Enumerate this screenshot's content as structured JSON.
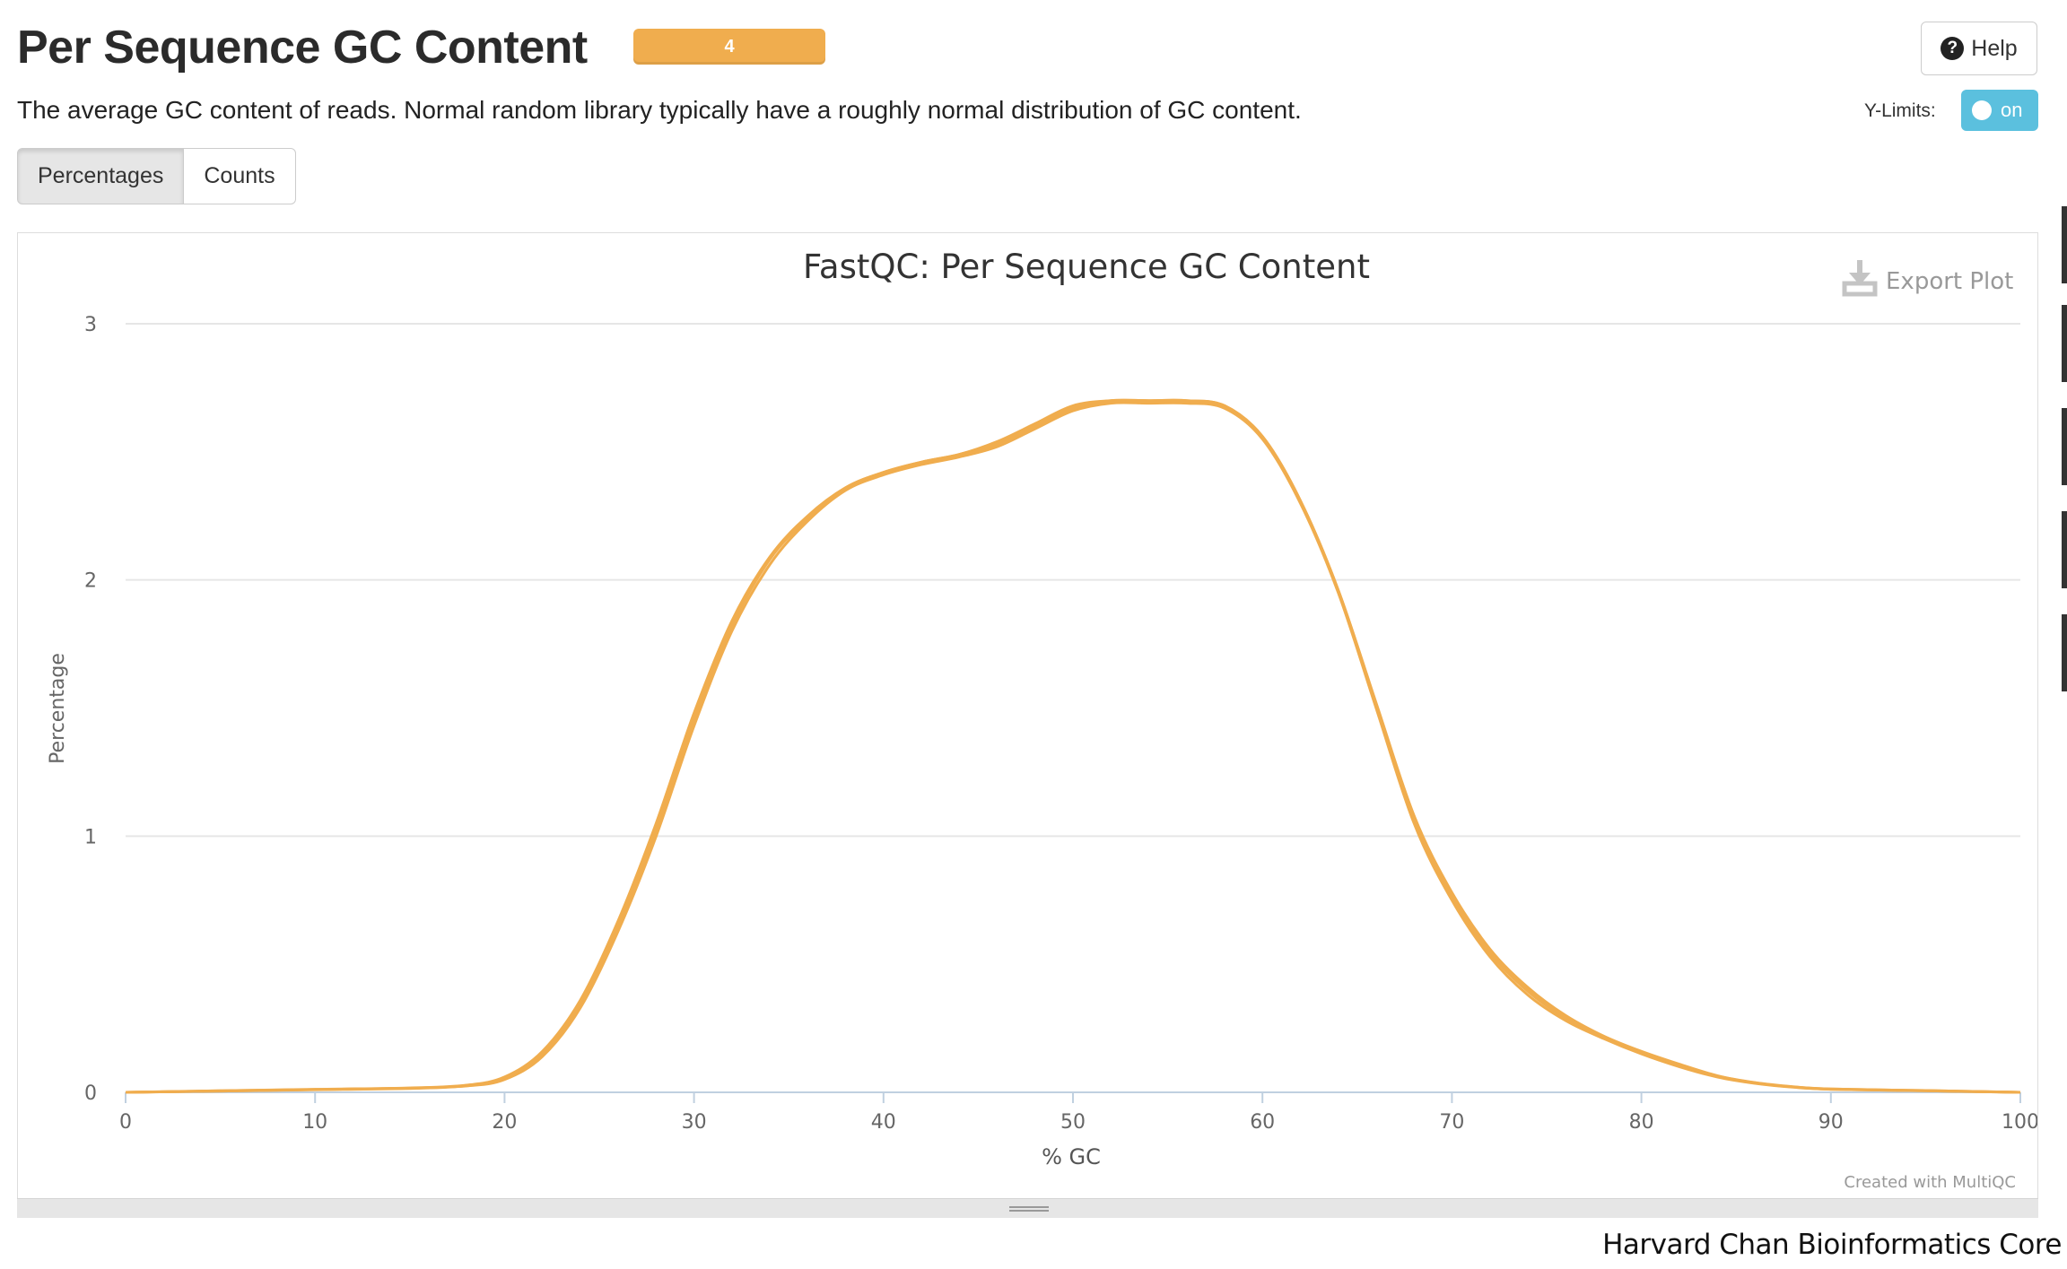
{
  "header": {
    "title": "Per Sequence GC Content",
    "badge": "4",
    "help_label": "Help",
    "help_icon": "question-circle-icon"
  },
  "description": "The average GC content of reads. Normal random library typically have a roughly normal distribution of GC content.",
  "controls": {
    "ylimits_label": "Y-Limits:",
    "ylimits_value": "on",
    "tabs": [
      {
        "label": "Percentages",
        "active": true
      },
      {
        "label": "Counts",
        "active": false
      }
    ]
  },
  "plot": {
    "export_label": "Export Plot",
    "export_icon": "download-icon",
    "credit": "Created with MultiQC"
  },
  "colors": {
    "series": "#f0ad4e",
    "toggle": "#5bc0de",
    "badge": "#f0ad4e"
  },
  "chart_data": {
    "type": "line",
    "title": "FastQC: Per Sequence GC Content",
    "xlabel": "% GC",
    "ylabel": "Percentage",
    "xlim": [
      0,
      100
    ],
    "ylim": [
      0,
      3
    ],
    "xticks": [
      0,
      10,
      20,
      30,
      40,
      50,
      60,
      70,
      80,
      90,
      100
    ],
    "yticks": [
      0,
      1,
      2,
      3
    ],
    "grid": true,
    "legend": "none",
    "series": [
      {
        "x": [
          0,
          5,
          10,
          15,
          18,
          20,
          22,
          24,
          26,
          28,
          30,
          32,
          34,
          36,
          38,
          40,
          42,
          44,
          46,
          48,
          50,
          52,
          54,
          56,
          58,
          60,
          62,
          64,
          66,
          68,
          70,
          72,
          74,
          76,
          78,
          80,
          82,
          84,
          86,
          88,
          90,
          95,
          100
        ],
        "y": [
          0,
          0.005,
          0.01,
          0.015,
          0.025,
          0.05,
          0.14,
          0.33,
          0.63,
          1.0,
          1.43,
          1.8,
          2.06,
          2.23,
          2.35,
          2.41,
          2.45,
          2.48,
          2.52,
          2.59,
          2.66,
          2.69,
          2.69,
          2.69,
          2.67,
          2.55,
          2.3,
          1.95,
          1.5,
          1.05,
          0.75,
          0.53,
          0.38,
          0.28,
          0.21,
          0.15,
          0.1,
          0.06,
          0.035,
          0.02,
          0.012,
          0.006,
          0
        ]
      },
      {
        "x": [
          0,
          5,
          10,
          15,
          18,
          20,
          22,
          24,
          26,
          28,
          30,
          32,
          34,
          36,
          38,
          40,
          42,
          44,
          46,
          48,
          50,
          52,
          54,
          56,
          58,
          60,
          62,
          64,
          66,
          68,
          70,
          72,
          74,
          76,
          78,
          80,
          82,
          84,
          86,
          88,
          90,
          95,
          100
        ],
        "y": [
          0,
          0.006,
          0.012,
          0.017,
          0.028,
          0.06,
          0.16,
          0.36,
          0.67,
          1.05,
          1.48,
          1.84,
          2.09,
          2.25,
          2.36,
          2.42,
          2.46,
          2.49,
          2.54,
          2.61,
          2.68,
          2.7,
          2.7,
          2.7,
          2.68,
          2.56,
          2.31,
          1.96,
          1.52,
          1.08,
          0.78,
          0.56,
          0.41,
          0.3,
          0.22,
          0.16,
          0.11,
          0.065,
          0.038,
          0.022,
          0.013,
          0.007,
          0
        ]
      },
      {
        "x": [
          0,
          5,
          10,
          15,
          18,
          20,
          22,
          24,
          26,
          28,
          30,
          32,
          34,
          36,
          38,
          40,
          42,
          44,
          46,
          48,
          50,
          52,
          54,
          56,
          58,
          60,
          62,
          64,
          66,
          68,
          70,
          72,
          74,
          76,
          78,
          80,
          82,
          84,
          86,
          88,
          90,
          95,
          100
        ],
        "y": [
          0,
          0.005,
          0.011,
          0.016,
          0.026,
          0.055,
          0.15,
          0.34,
          0.64,
          1.02,
          1.45,
          1.82,
          2.08,
          2.24,
          2.355,
          2.415,
          2.455,
          2.485,
          2.53,
          2.6,
          2.67,
          2.695,
          2.695,
          2.695,
          2.675,
          2.555,
          2.305,
          1.955,
          1.51,
          1.065,
          0.765,
          0.545,
          0.395,
          0.29,
          0.215,
          0.155,
          0.105,
          0.062,
          0.036,
          0.021,
          0.012,
          0.006,
          0
        ]
      },
      {
        "x": [
          0,
          5,
          10,
          15,
          18,
          20,
          22,
          24,
          26,
          28,
          30,
          32,
          34,
          36,
          38,
          40,
          42,
          44,
          46,
          48,
          50,
          52,
          54,
          56,
          58,
          60,
          62,
          64,
          66,
          68,
          70,
          72,
          74,
          76,
          78,
          80,
          82,
          84,
          86,
          88,
          90,
          95,
          100
        ],
        "y": [
          0,
          0.006,
          0.011,
          0.016,
          0.027,
          0.058,
          0.155,
          0.35,
          0.66,
          1.03,
          1.47,
          1.83,
          2.085,
          2.245,
          2.36,
          2.42,
          2.46,
          2.49,
          2.535,
          2.605,
          2.675,
          2.7,
          2.7,
          2.7,
          2.68,
          2.56,
          2.31,
          1.96,
          1.515,
          1.07,
          0.77,
          0.55,
          0.4,
          0.295,
          0.218,
          0.158,
          0.108,
          0.064,
          0.037,
          0.021,
          0.013,
          0.007,
          0
        ]
      }
    ]
  },
  "footer": {
    "credit": "Harvard Chan Bioinformatics Core"
  }
}
